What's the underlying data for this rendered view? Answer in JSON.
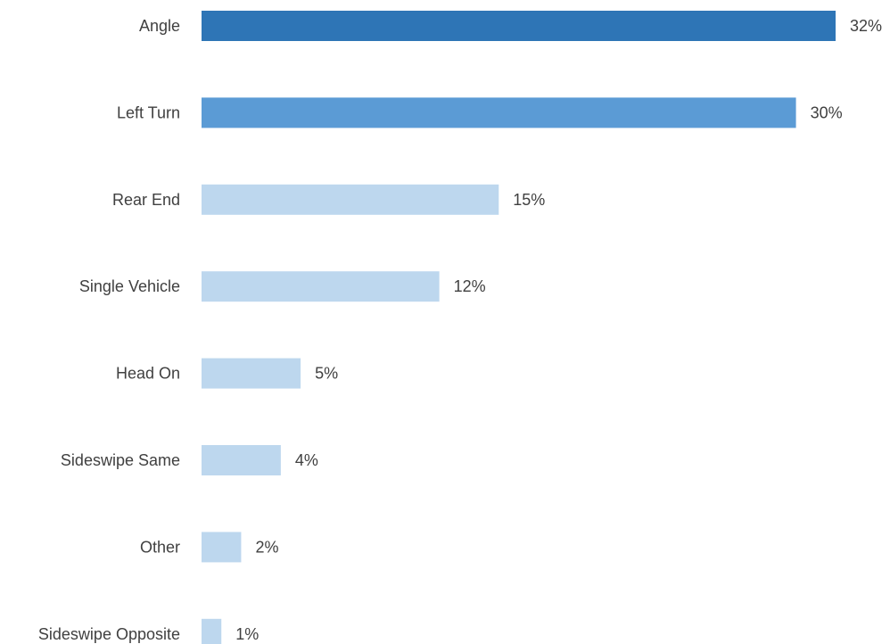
{
  "chart_data": {
    "type": "bar",
    "orientation": "horizontal",
    "categories": [
      "Angle",
      "Left Turn",
      "Rear End",
      "Single Vehicle",
      "Head On",
      "Sideswipe Same",
      "Other",
      "Sideswipe Opposite"
    ],
    "values": [
      32,
      30,
      15,
      12,
      5,
      4,
      2,
      1
    ],
    "value_labels": [
      "32%",
      "30%",
      "15%",
      "12%",
      "5%",
      "4%",
      "2%",
      "1%"
    ],
    "unit": "%",
    "title": "",
    "xlabel": "",
    "ylabel": "",
    "grid": false,
    "legend": "none",
    "bar_colors": [
      "#2E75B6",
      "#5B9BD5",
      "#BDD7EE",
      "#BDD7EE",
      "#BDD7EE",
      "#BDD7EE",
      "#BDD7EE",
      "#BDD7EE"
    ],
    "label_color": "#404040"
  }
}
